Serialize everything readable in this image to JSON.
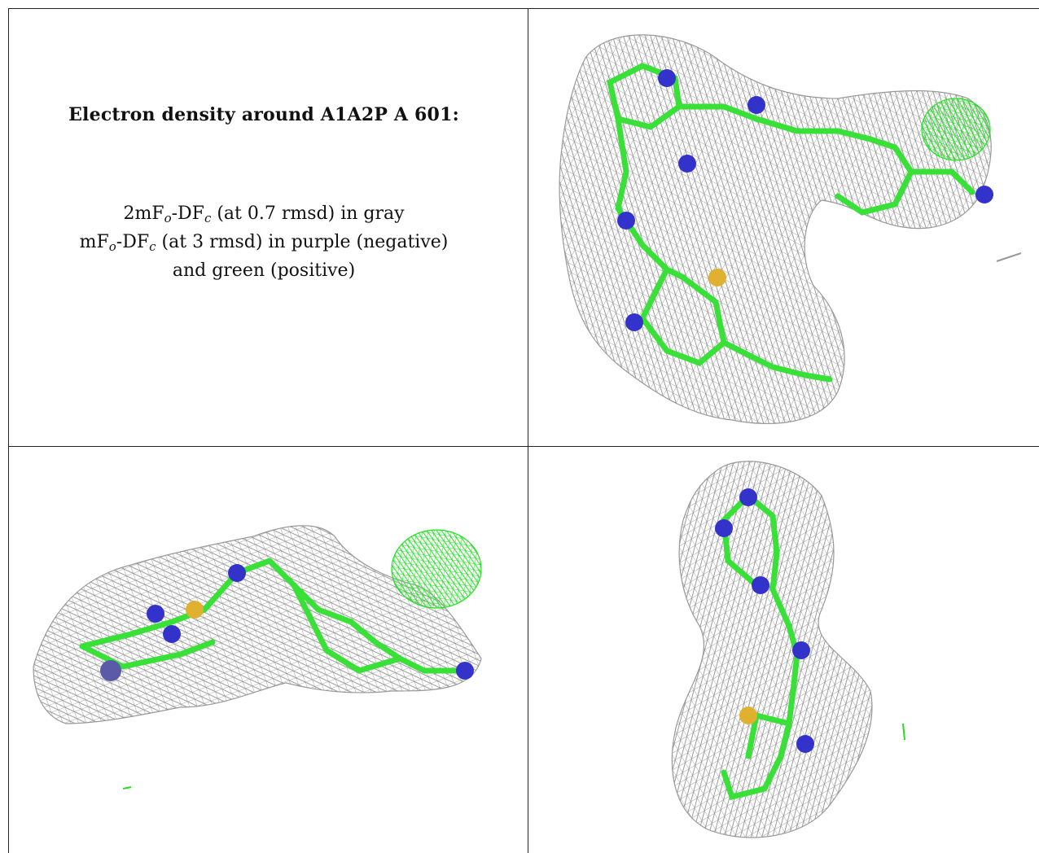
{
  "legend": {
    "title": "Electron density around A1A2P A 601:",
    "line1_prefix": "2mF",
    "line1_mid": "-DF",
    "line1_suffix": " (at 0.7 rmsd) in gray",
    "line2_prefix": "mF",
    "line2_mid": "-DF",
    "line2_suffix": " (at 3 rmsd) in purple (negative)",
    "line3": "and green (positive)",
    "sub_o": "o",
    "sub_c": "c"
  },
  "colors": {
    "mesh_gray": "#8a8a8a",
    "mesh_green": "#22e022",
    "carbon": "#38e038",
    "nitrogen": "#3333cc",
    "sulfur": "#e0b030"
  }
}
